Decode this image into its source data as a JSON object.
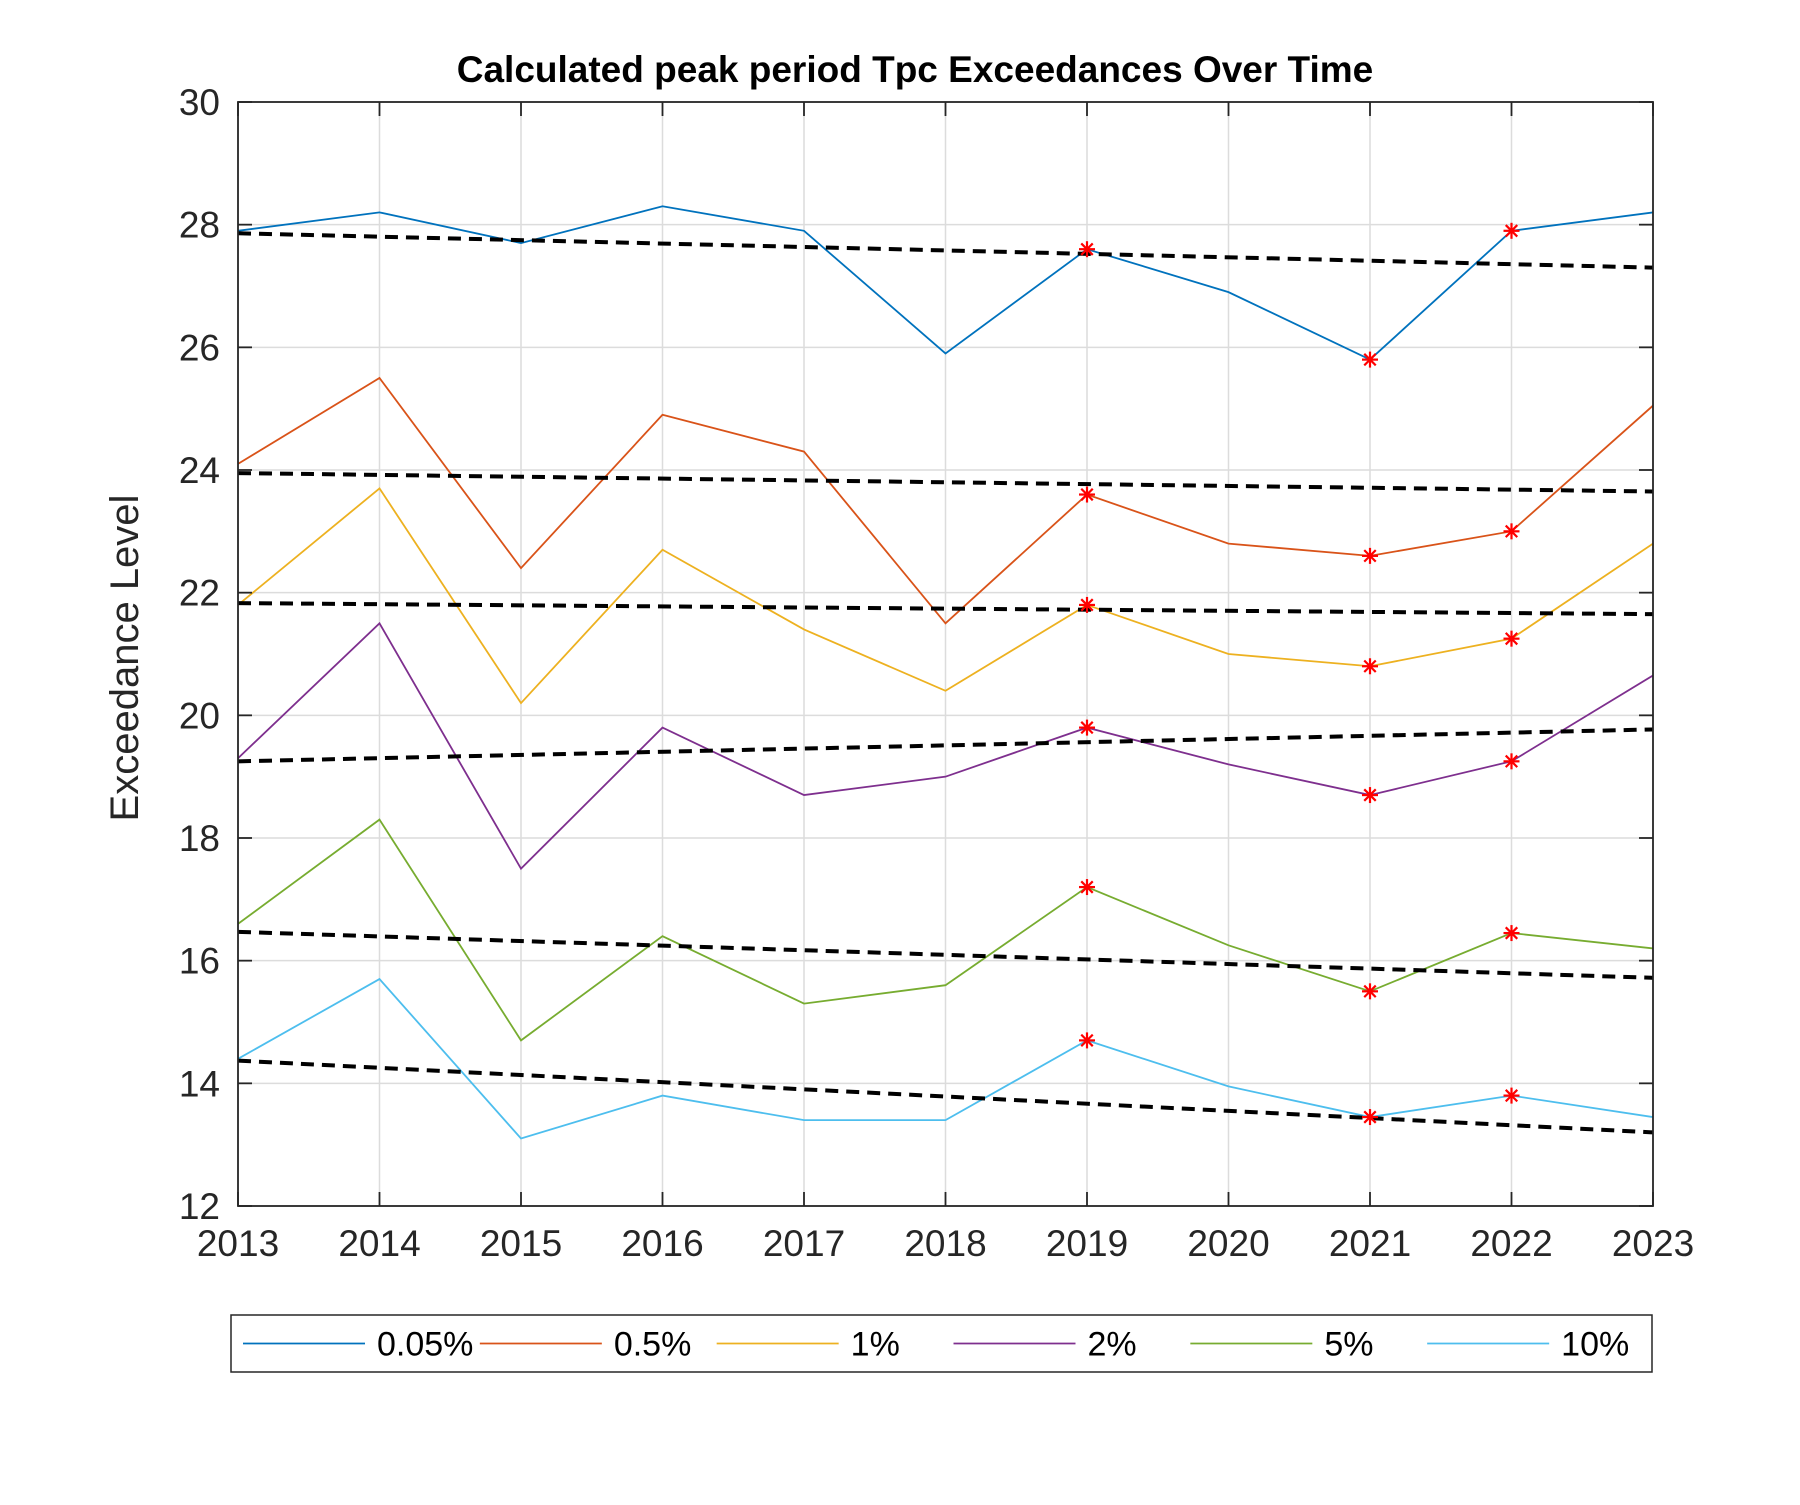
{
  "chart_data": {
    "type": "line",
    "title": "Calculated peak period Tpc Exceedances Over Time",
    "xlabel": "",
    "ylabel": "Exceedance Level",
    "xlim": [
      2013,
      2023
    ],
    "ylim": [
      12,
      30
    ],
    "x": [
      2013,
      2014,
      2015,
      2016,
      2017,
      2018,
      2019,
      2020,
      2021,
      2022,
      2023
    ],
    "x_ticks": [
      "2013",
      "2014",
      "2015",
      "2016",
      "2017",
      "2018",
      "2019",
      "2020",
      "2021",
      "2022",
      "2023"
    ],
    "y_ticks": [
      {
        "value": 12,
        "label": "12"
      },
      {
        "value": 14,
        "label": "14"
      },
      {
        "value": 16,
        "label": "16"
      },
      {
        "value": 18,
        "label": "18"
      },
      {
        "value": 20,
        "label": "20"
      },
      {
        "value": 22,
        "label": "22"
      },
      {
        "value": 24,
        "label": "24"
      },
      {
        "value": 26,
        "label": "26"
      },
      {
        "value": 28,
        "label": "28"
      },
      {
        "value": 30,
        "label": "30"
      }
    ],
    "grid": true,
    "legend_position": "bottom",
    "series": [
      {
        "name": "0.05%",
        "color": "#0072BD",
        "values": [
          27.9,
          28.2,
          27.7,
          28.3,
          27.9,
          25.9,
          27.6,
          26.9,
          25.8,
          27.9,
          28.2
        ],
        "trend": [
          27.86,
          27.3
        ],
        "highlighted_x": [
          2019,
          2021,
          2022
        ]
      },
      {
        "name": "0.5%",
        "color": "#D95319",
        "values": [
          24.1,
          25.5,
          22.4,
          24.9,
          24.3,
          21.5,
          23.6,
          22.8,
          22.6,
          23.0,
          25.05
        ],
        "trend": [
          23.95,
          23.65
        ],
        "highlighted_x": [
          2019,
          2021,
          2022
        ]
      },
      {
        "name": "1%",
        "color": "#EDB120",
        "values": [
          21.8,
          23.7,
          20.2,
          22.7,
          21.4,
          20.4,
          21.8,
          21.0,
          20.8,
          21.25,
          22.8
        ],
        "trend": [
          21.83,
          21.65
        ],
        "highlighted_x": [
          2019,
          2021,
          2022
        ]
      },
      {
        "name": "2%",
        "color": "#7E2F8E",
        "values": [
          19.3,
          21.5,
          17.5,
          19.8,
          18.7,
          19.0,
          19.8,
          19.2,
          18.7,
          19.25,
          20.65
        ],
        "trend": [
          19.25,
          19.77
        ],
        "highlighted_x": [
          2019,
          2021,
          2022
        ]
      },
      {
        "name": "5%",
        "color": "#77AC30",
        "values": [
          16.6,
          18.3,
          14.7,
          16.4,
          15.3,
          15.6,
          17.2,
          16.25,
          15.5,
          16.45,
          16.2
        ],
        "trend": [
          16.47,
          15.72
        ],
        "highlighted_x": [
          2019,
          2021,
          2022
        ]
      },
      {
        "name": "10%",
        "color": "#4DBEEE",
        "values": [
          14.4,
          15.7,
          13.1,
          13.8,
          13.4,
          13.4,
          14.7,
          13.95,
          13.45,
          13.8,
          13.45
        ],
        "trend": [
          14.37,
          13.2
        ],
        "highlighted_x": [
          2019,
          2021,
          2022
        ]
      }
    ],
    "trend_line_color": "#000000",
    "highlight_marker_color": "#FF0000"
  }
}
